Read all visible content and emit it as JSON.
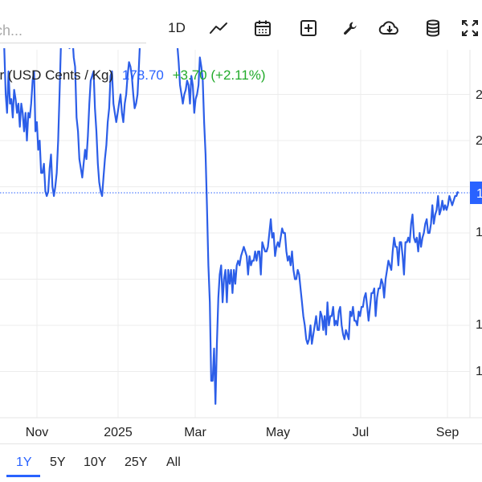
{
  "toolbar": {
    "search_placeholder": "ch...",
    "timeframe_label": "1D",
    "icons": [
      "line-chart-icon",
      "calendar-icon",
      "add-square-icon",
      "wrench-icon",
      "cloud-download-icon",
      "database-icon",
      "fullscreen-icon"
    ]
  },
  "quote": {
    "label": "er (USD Cents / Kg)",
    "price": "178.70",
    "change": "+3.70 (+2.11%)"
  },
  "colors": {
    "accent": "#2962ff",
    "positive": "#22ab2b",
    "grid": "#ececec",
    "line": "#2c5ee8"
  },
  "chart_data": {
    "type": "line",
    "x_tick_labels": [
      "Nov",
      "2025",
      "Mar",
      "May",
      "Jul",
      "Sep"
    ],
    "y_tick_labels": [
      "2",
      "2",
      "2",
      "1",
      "1",
      "1",
      "1"
    ],
    "last_price_label": "1",
    "last_value": 178.7,
    "grid": true,
    "series": [
      {
        "values": [
          226,
          233,
          211,
          210,
          200,
          196,
          205,
          198,
          199,
          195,
          201,
          199,
          196,
          198,
          193,
          198,
          196,
          192,
          196,
          190,
          196,
          195,
          198,
          203,
          205,
          192,
          194,
          188,
          190,
          183,
          183,
          185,
          179,
          178,
          179,
          184,
          187,
          180,
          178,
          180,
          183,
          190,
          200,
          211,
          213,
          220,
          219,
          217,
          215,
          210,
          214,
          213,
          208,
          206,
          195,
          192,
          186,
          184,
          182,
          185,
          188,
          186,
          191,
          198,
          203,
          204,
          205,
          197,
          192,
          185,
          181,
          179,
          178,
          182,
          186,
          189,
          194,
          197,
          204,
          205,
          198,
          196,
          194,
          196,
          198,
          200,
          196,
          194,
          198,
          200,
          204,
          207,
          206,
          204,
          200,
          197,
          198,
          200,
          206,
          213,
          212,
          213,
          211,
          216,
          214,
          218,
          220,
          219,
          221,
          222,
          223,
          224,
          220,
          218,
          214,
          220,
          216,
          222,
          217,
          214,
          211,
          215,
          215,
          212,
          213,
          211,
          207,
          202,
          200,
          198,
          200,
          201,
          203,
          202,
          198,
          204,
          202,
          196,
          199,
          200,
          202,
          208,
          206,
          203,
          194,
          187,
          176,
          163,
          155,
          138,
          138,
          145,
          133,
          146,
          156,
          161,
          163,
          155,
          160,
          162,
          155,
          162,
          159,
          162,
          157,
          162,
          159,
          163,
          164,
          163,
          165,
          166,
          167,
          166,
          165,
          161,
          165,
          163,
          164,
          164,
          166,
          164,
          166,
          166,
          161,
          168,
          167,
          166,
          166,
          167,
          170,
          173,
          169,
          170,
          165,
          167,
          168,
          167,
          169,
          171,
          170,
          170,
          166,
          164,
          165,
          163,
          166,
          162,
          160,
          160,
          162,
          161,
          158,
          155,
          152,
          150,
          147,
          146,
          147,
          150,
          146,
          148,
          150,
          152,
          149,
          149,
          153,
          152,
          149,
          152,
          148,
          155,
          150,
          152,
          152,
          154,
          150,
          151,
          150,
          153,
          154,
          150,
          148,
          147,
          149,
          148,
          147,
          153,
          152,
          154,
          151,
          151,
          150,
          153,
          152,
          154,
          154,
          156,
          157,
          154,
          151,
          154,
          157,
          157,
          158,
          152,
          156,
          158,
          158,
          160,
          159,
          156,
          160,
          162,
          164,
          163,
          162,
          166,
          169,
          167,
          167,
          163,
          168,
          168,
          165,
          161,
          168,
          168,
          169,
          168,
          172,
          174,
          169,
          168,
          169,
          166,
          170,
          167,
          169,
          170,
          172,
          173,
          170,
          170,
          172,
          176,
          172,
          174,
          175,
          178,
          174,
          175,
          177,
          175,
          176,
          175,
          176,
          178,
          177,
          176,
          177,
          178,
          178,
          179
        ]
      }
    ]
  },
  "range_selector": {
    "buttons": [
      "1Y",
      "5Y",
      "10Y",
      "25Y",
      "All"
    ],
    "active": "1Y"
  }
}
